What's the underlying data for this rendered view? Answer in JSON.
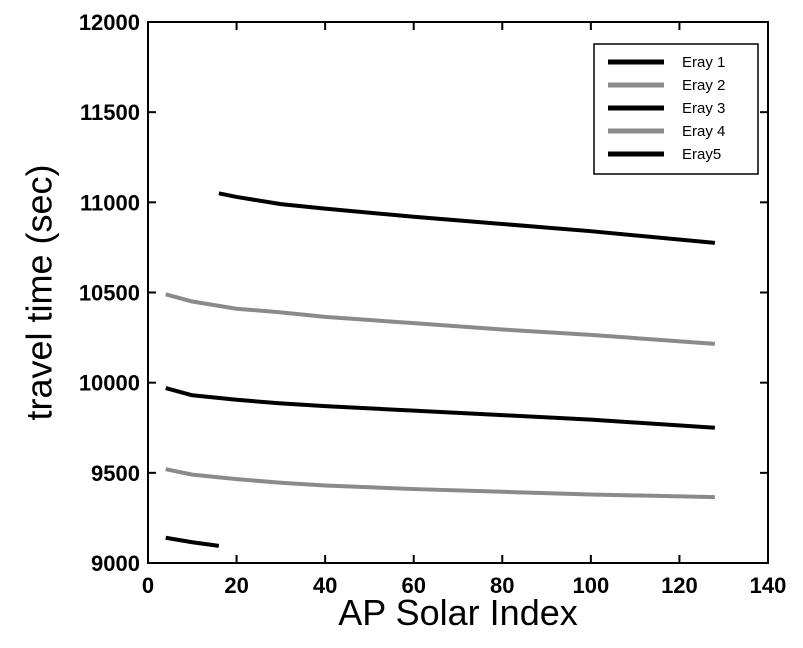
{
  "chart_data": {
    "type": "line",
    "title": "",
    "xlabel": "AP Solar Index",
    "ylabel": "travel time (sec)",
    "xlim": [
      0,
      140
    ],
    "ylim": [
      9000,
      12000
    ],
    "xticks": [
      "0",
      "20",
      "40",
      "60",
      "80",
      "100",
      "120",
      "140"
    ],
    "yticks": [
      "9000",
      "9500",
      "10000",
      "10500",
      "11000",
      "11500",
      "12000"
    ],
    "grid": false,
    "legend_position": "top-right",
    "series": [
      {
        "name": "Eray 1",
        "color": "#000000",
        "x": [
          16,
          20,
          30,
          40,
          60,
          80,
          100,
          128
        ],
        "y": [
          11050,
          11030,
          10990,
          10965,
          10920,
          10880,
          10840,
          10775
        ]
      },
      {
        "name": "Eray 2",
        "color": "#8a8a8a",
        "x": [
          4,
          10,
          20,
          30,
          40,
          60,
          80,
          100,
          128
        ],
        "y": [
          10490,
          10450,
          10410,
          10390,
          10365,
          10330,
          10295,
          10265,
          10215
        ]
      },
      {
        "name": "Eray 3",
        "color": "#000000",
        "x": [
          4,
          10,
          20,
          30,
          40,
          60,
          80,
          100,
          128
        ],
        "y": [
          9970,
          9930,
          9905,
          9885,
          9870,
          9845,
          9820,
          9795,
          9750
        ]
      },
      {
        "name": "Eray 4",
        "color": "#8a8a8a",
        "x": [
          4,
          10,
          20,
          30,
          40,
          60,
          80,
          100,
          128
        ],
        "y": [
          9520,
          9490,
          9465,
          9445,
          9430,
          9410,
          9395,
          9380,
          9365
        ]
      },
      {
        "name": "Eray5",
        "color": "#000000",
        "x": [
          4,
          10,
          16
        ],
        "y": [
          9140,
          9115,
          9095
        ]
      }
    ]
  }
}
